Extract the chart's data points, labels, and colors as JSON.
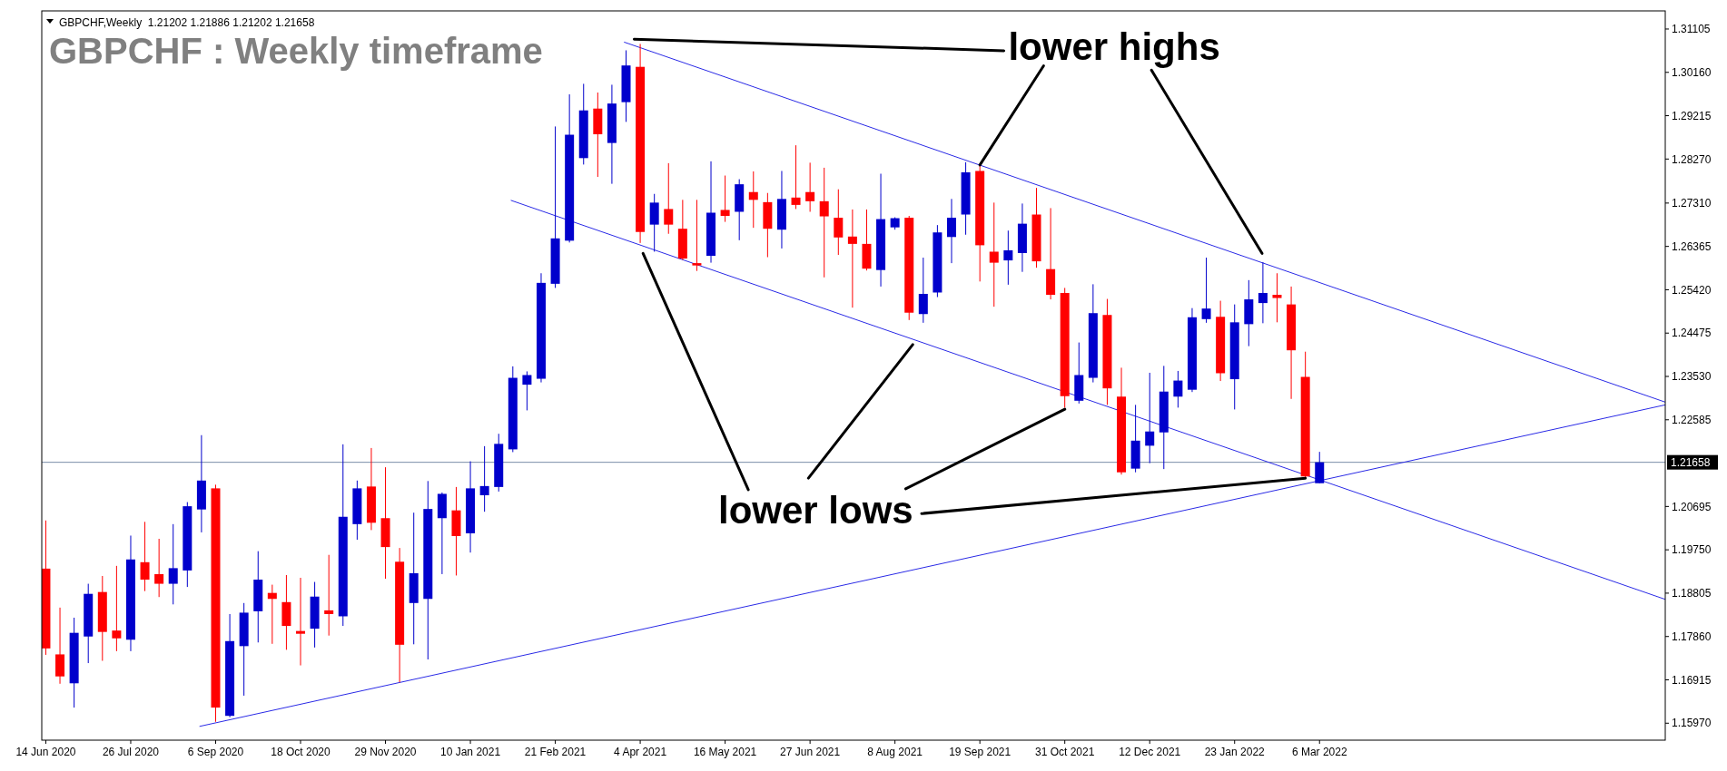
{
  "chart_data": {
    "type": "candlestick",
    "title": "GBPCHF : Weekly timeframe",
    "subtitle": "GBPCHF,Weekly  1.21202 1.21886 1.21202 1.21658",
    "x": [
      "2020-06-14",
      "2020-06-21",
      "2020-06-28",
      "2020-07-05",
      "2020-07-12",
      "2020-07-19",
      "2020-07-26",
      "2020-08-02",
      "2020-08-09",
      "2020-08-16",
      "2020-08-23",
      "2020-08-30",
      "2020-09-06",
      "2020-09-13",
      "2020-09-20",
      "2020-09-27",
      "2020-10-04",
      "2020-10-11",
      "2020-10-18",
      "2020-10-25",
      "2020-11-01",
      "2020-11-08",
      "2020-11-15",
      "2020-11-22",
      "2020-11-29",
      "2020-12-06",
      "2020-12-13",
      "2020-12-20",
      "2020-12-27",
      "2021-01-03",
      "2021-01-10",
      "2021-01-17",
      "2021-01-24",
      "2021-01-31",
      "2021-02-07",
      "2021-02-14",
      "2021-02-21",
      "2021-02-28",
      "2021-03-07",
      "2021-03-14",
      "2021-03-21",
      "2021-03-28",
      "2021-04-04",
      "2021-04-11",
      "2021-04-18",
      "2021-04-25",
      "2021-05-02",
      "2021-05-09",
      "2021-05-16",
      "2021-05-23",
      "2021-05-30",
      "2021-06-06",
      "2021-06-13",
      "2021-06-20",
      "2021-06-27",
      "2021-07-04",
      "2021-07-11",
      "2021-07-18",
      "2021-07-25",
      "2021-08-01",
      "2021-08-08",
      "2021-08-15",
      "2021-08-22",
      "2021-08-29",
      "2021-09-05",
      "2021-09-12",
      "2021-09-19",
      "2021-09-26",
      "2021-10-03",
      "2021-10-10",
      "2021-10-17",
      "2021-10-24",
      "2021-10-31",
      "2021-11-07",
      "2021-11-14",
      "2021-11-21",
      "2021-11-28",
      "2021-12-05",
      "2021-12-12",
      "2021-12-19",
      "2021-12-26",
      "2022-01-02",
      "2022-01-09",
      "2022-01-16",
      "2022-01-23",
      "2022-01-30",
      "2022-02-06",
      "2022-02-13",
      "2022-02-20",
      "2022-02-27",
      "2022-03-06"
    ],
    "ohlc": [
      [
        1.1934,
        1.2039,
        1.1746,
        1.176
      ],
      [
        1.1747,
        1.1849,
        1.1683,
        1.1699
      ],
      [
        1.1684,
        1.1827,
        1.1631,
        1.1794
      ],
      [
        1.1786,
        1.1901,
        1.1728,
        1.1879
      ],
      [
        1.1883,
        1.1918,
        1.1733,
        1.1796
      ],
      [
        1.1799,
        1.194,
        1.1754,
        1.1782
      ],
      [
        1.1779,
        1.2006,
        1.1754,
        1.1954
      ],
      [
        1.1948,
        1.2036,
        1.1885,
        1.191
      ],
      [
        1.1922,
        1.1999,
        1.1872,
        1.1901
      ],
      [
        1.1901,
        1.2031,
        1.1856,
        1.1935
      ],
      [
        1.193,
        1.2079,
        1.1894,
        1.207
      ],
      [
        1.2063,
        1.2225,
        1.2013,
        1.2126
      ],
      [
        1.2109,
        1.2117,
        1.16,
        1.1631
      ],
      [
        1.1613,
        1.1835,
        1.161,
        1.1776
      ],
      [
        1.1765,
        1.1859,
        1.1657,
        1.1838
      ],
      [
        1.1841,
        1.1972,
        1.1773,
        1.191
      ],
      [
        1.1881,
        1.1899,
        1.177,
        1.1868
      ],
      [
        1.1861,
        1.192,
        1.1757,
        1.1809
      ],
      [
        1.1798,
        1.1914,
        1.1723,
        1.1792
      ],
      [
        1.1803,
        1.1905,
        1.1762,
        1.1873
      ],
      [
        1.1843,
        1.1964,
        1.1788,
        1.1835
      ],
      [
        1.183,
        1.2205,
        1.1809,
        1.2047
      ],
      [
        1.2031,
        1.2126,
        1.1997,
        1.2109
      ],
      [
        1.2113,
        1.2197,
        1.2018,
        1.2034
      ],
      [
        1.2044,
        1.2155,
        1.1912,
        1.1981
      ],
      [
        1.1949,
        1.1979,
        1.1686,
        1.1768
      ],
      [
        1.1859,
        1.2056,
        1.1769,
        1.1924
      ],
      [
        1.1868,
        1.2125,
        1.1736,
        1.2064
      ],
      [
        1.2044,
        1.21,
        1.1922,
        1.2097
      ],
      [
        1.2061,
        1.2112,
        1.1919,
        1.2005
      ],
      [
        1.2011,
        1.2168,
        1.1969,
        1.2109
      ],
      [
        1.2094,
        1.2201,
        1.2058,
        1.2114
      ],
      [
        1.2112,
        1.2228,
        1.2102,
        1.2206
      ],
      [
        1.2194,
        1.2375,
        1.2188,
        1.235
      ],
      [
        1.2335,
        1.2364,
        1.2279,
        1.2356
      ],
      [
        1.2348,
        1.2578,
        1.234,
        1.2557
      ],
      [
        1.2555,
        1.2898,
        1.2546,
        1.2654
      ],
      [
        1.2649,
        1.2968,
        1.2645,
        1.288
      ],
      [
        1.2829,
        1.2991,
        1.2815,
        1.2933
      ],
      [
        1.2937,
        1.2972,
        1.2788,
        1.2881
      ],
      [
        1.2862,
        1.2989,
        1.2773,
        1.2948
      ],
      [
        1.2951,
        1.3064,
        1.2908,
        1.3031
      ],
      [
        1.3028,
        1.3078,
        1.2644,
        1.2668
      ],
      [
        1.2684,
        1.2751,
        1.2625,
        1.2732
      ],
      [
        1.2718,
        1.2818,
        1.2664,
        1.2684
      ],
      [
        1.2675,
        1.2738,
        1.2607,
        1.261
      ],
      [
        1.26,
        1.2738,
        1.2583,
        1.2595
      ],
      [
        1.2616,
        1.2822,
        1.2601,
        1.271
      ],
      [
        1.2716,
        1.2791,
        1.269,
        1.2703
      ],
      [
        1.2712,
        1.2783,
        1.265,
        1.2772
      ],
      [
        1.2755,
        1.28,
        1.2677,
        1.2738
      ],
      [
        1.2733,
        1.2753,
        1.2613,
        1.2675
      ],
      [
        1.2673,
        1.2801,
        1.2632,
        1.274
      ],
      [
        1.2743,
        1.2857,
        1.2718,
        1.2727
      ],
      [
        1.2755,
        1.2819,
        1.2712,
        1.2735
      ],
      [
        1.2735,
        1.2808,
        1.2569,
        1.2702
      ],
      [
        1.2699,
        1.2761,
        1.2618,
        1.2656
      ],
      [
        1.2658,
        1.2717,
        1.2503,
        1.2642
      ],
      [
        1.2642,
        1.2717,
        1.2584,
        1.2588
      ],
      [
        1.2585,
        1.2795,
        1.2549,
        1.2696
      ],
      [
        1.2678,
        1.27,
        1.2673,
        1.2698
      ],
      [
        1.2699,
        1.2703,
        1.2476,
        1.2492
      ],
      [
        1.2489,
        1.2612,
        1.247,
        1.2533
      ],
      [
        1.2536,
        1.2683,
        1.2526,
        1.2667
      ],
      [
        1.2657,
        1.274,
        1.26,
        1.2699
      ],
      [
        1.2706,
        1.282,
        1.2662,
        1.2798
      ],
      [
        1.2801,
        1.2814,
        1.256,
        1.2639
      ],
      [
        1.2625,
        1.2732,
        1.2505,
        1.2601
      ],
      [
        1.2606,
        1.2671,
        1.2553,
        1.2628
      ],
      [
        1.2622,
        1.273,
        1.2581,
        1.2686
      ],
      [
        1.2706,
        1.2764,
        1.259,
        1.2604
      ],
      [
        1.2587,
        1.272,
        1.2521,
        1.2531
      ],
      [
        1.2535,
        1.2546,
        1.2285,
        1.231
      ],
      [
        1.23,
        1.2427,
        1.2294,
        1.2356
      ],
      [
        1.235,
        1.2554,
        1.234,
        1.2491
      ],
      [
        1.2487,
        1.2522,
        1.2291,
        1.2327
      ],
      [
        1.2309,
        1.2372,
        1.2139,
        1.2144
      ],
      [
        1.2152,
        1.2291,
        1.2144,
        1.2213
      ],
      [
        1.2202,
        1.2361,
        1.2164,
        1.2233
      ],
      [
        1.2231,
        1.2376,
        1.2151,
        1.232
      ],
      [
        1.2309,
        1.2365,
        1.2285,
        1.2344
      ],
      [
        1.2324,
        1.2502,
        1.2319,
        1.2482
      ],
      [
        1.2478,
        1.2612,
        1.247,
        1.2501
      ],
      [
        1.2483,
        1.2518,
        1.2343,
        1.236
      ],
      [
        1.2347,
        1.251,
        1.2281,
        1.2471
      ],
      [
        1.2467,
        1.2563,
        1.2419,
        1.2521
      ],
      [
        1.2513,
        1.2602,
        1.2469,
        1.2535
      ],
      [
        1.2531,
        1.2578,
        1.2471,
        1.2524
      ],
      [
        1.251,
        1.2549,
        1.2304,
        1.241
      ],
      [
        1.2352,
        1.2407,
        1.2131,
        1.2135
      ],
      [
        1.21202,
        1.21886,
        1.21202,
        1.21658
      ]
    ],
    "series": [
      {
        "type": "line",
        "color": "#2a2ae6",
        "x": [
          "2021-03-27",
          "2022-08-24"
        ],
        "values": [
          1.3082,
          1.2297
        ]
      },
      {
        "type": "line",
        "color": "#2a2ae6",
        "x": [
          "2021-01-30",
          "2022-08-24"
        ],
        "values": [
          1.2737,
          1.1867
        ]
      },
      {
        "type": "line",
        "color": "#2a2ae6",
        "x": [
          "2020-08-29",
          "2022-08-24"
        ],
        "values": [
          1.159,
          1.2291
        ]
      }
    ],
    "xlim": [
      "2020-06-12",
      "2022-08-24"
    ],
    "ylim": [
      1.156,
      1.315
    ],
    "xticks": [
      {
        "value": "2020-06-14",
        "label": "14 Jun 2020"
      },
      {
        "value": "2020-07-26",
        "label": "26 Jul 2020"
      },
      {
        "value": "2020-09-06",
        "label": "6 Sep 2020"
      },
      {
        "value": "2020-10-18",
        "label": "18 Oct 2020"
      },
      {
        "value": "2020-11-29",
        "label": "29 Nov 2020"
      },
      {
        "value": "2021-01-10",
        "label": "10 Jan 2021"
      },
      {
        "value": "2021-02-21",
        "label": "21 Feb 2021"
      },
      {
        "value": "2021-04-04",
        "label": "4 Apr 2021"
      },
      {
        "value": "2021-05-16",
        "label": "16 May 2021"
      },
      {
        "value": "2021-06-27",
        "label": "27 Jun 2021"
      },
      {
        "value": "2021-08-08",
        "label": "8 Aug 2021"
      },
      {
        "value": "2021-09-19",
        "label": "19 Sep 2021"
      },
      {
        "value": "2021-10-31",
        "label": "31 Oct 2021"
      },
      {
        "value": "2021-12-12",
        "label": "12 Dec 2021"
      },
      {
        "value": "2022-01-23",
        "label": "23 Jan 2022"
      },
      {
        "value": "2022-03-06",
        "label": "6 Mar 2022"
      }
    ],
    "yticks": [
      1.31105,
      {
        "value": 1.3016,
        "label": "1.30160"
      },
      1.29215,
      {
        "value": 1.2827,
        "label": "1.28270"
      },
      {
        "value": 1.2731,
        "label": "1.27310"
      },
      1.26365,
      {
        "value": 1.2542,
        "label": "1.25420"
      },
      1.24475,
      {
        "value": 1.2353,
        "label": "1.23530"
      },
      1.22585,
      1.20695,
      {
        "value": 1.1975,
        "label": "1.19750"
      },
      1.18805,
      {
        "value": 1.1786,
        "label": "1.17860"
      },
      1.16915,
      {
        "value": 1.1597,
        "label": "1.15970"
      }
    ],
    "ref_lines": [
      {
        "axis": "y",
        "value": 1.21658,
        "label": "1.21658",
        "color": "#7a8ca8"
      }
    ],
    "annotations": [
      {
        "text": "lower highs",
        "x": "2021-09-19",
        "y": 1.2814
      },
      {
        "text": "lower lows",
        "x": "2022-02-27",
        "y": 1.2131
      }
    ]
  }
}
